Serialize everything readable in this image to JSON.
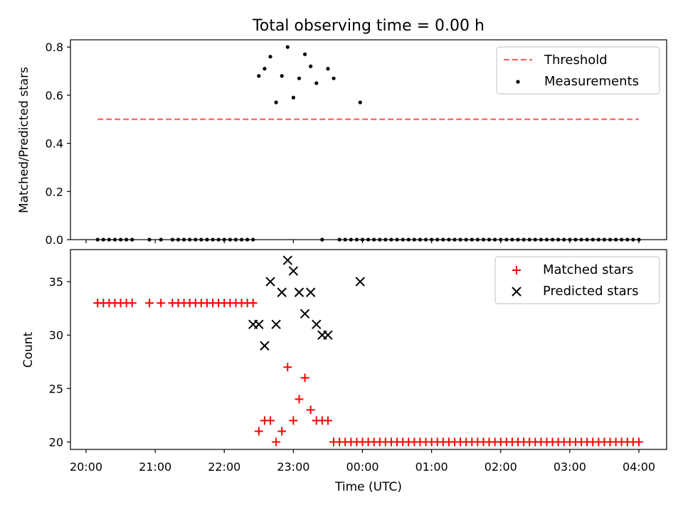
{
  "chart_data": [
    {
      "type": "scatter",
      "title": "Total observing time = 0.00 h",
      "xlabel": "",
      "ylabel": "Matched/Predicted stars",
      "ylim": [
        0,
        0.83
      ],
      "yticks": [
        0.0,
        0.2,
        0.4,
        0.6,
        0.8
      ],
      "yticklabels": [
        "0.0",
        "0.2",
        "0.4",
        "0.6",
        "0.8"
      ],
      "legend": {
        "placement": "top-right",
        "entries": [
          "Threshold",
          "Measurements"
        ]
      },
      "threshold": {
        "name": "Threshold",
        "value": 0.5,
        "x_start": "20:10",
        "x_end": "04:00",
        "color": "#ff6666",
        "style": "dashed"
      },
      "series": [
        {
          "name": "Measurements",
          "marker": "dot",
          "color": "#000000",
          "x": [
            "20:10",
            "20:15",
            "20:20",
            "20:25",
            "20:30",
            "20:35",
            "20:40",
            "20:55",
            "21:05",
            "21:15",
            "21:20",
            "21:25",
            "21:30",
            "21:35",
            "21:40",
            "21:45",
            "21:50",
            "21:55",
            "22:00",
            "22:05",
            "22:10",
            "22:15",
            "22:20",
            "22:25",
            "22:30",
            "22:35",
            "22:40",
            "22:45",
            "22:50",
            "22:55",
            "23:00",
            "23:05",
            "23:10",
            "23:15",
            "23:20",
            "23:25",
            "23:30",
            "23:35",
            "23:40",
            "23:45",
            "23:50",
            "23:55",
            "23:58",
            "00:00",
            "00:05",
            "00:10",
            "00:15",
            "00:20",
            "00:25",
            "00:30",
            "00:35",
            "00:40",
            "00:45",
            "00:50",
            "00:55",
            "01:00",
            "01:05",
            "01:10",
            "01:15",
            "01:20",
            "01:25",
            "01:30",
            "01:35",
            "01:40",
            "01:45",
            "01:50",
            "01:55",
            "02:00",
            "02:05",
            "02:10",
            "02:15",
            "02:20",
            "02:25",
            "02:30",
            "02:35",
            "02:40",
            "02:45",
            "02:50",
            "02:55",
            "03:00",
            "03:05",
            "03:10",
            "03:15",
            "03:20",
            "03:25",
            "03:30",
            "03:35",
            "03:40",
            "03:45",
            "03:50",
            "03:55",
            "04:00"
          ],
          "y": [
            0,
            0,
            0,
            0,
            0,
            0,
            0,
            0,
            0,
            0,
            0,
            0,
            0,
            0,
            0,
            0,
            0,
            0,
            0,
            0,
            0,
            0,
            0,
            0,
            0.68,
            0.71,
            0.76,
            0.57,
            0.68,
            0.8,
            0.59,
            0.67,
            0.77,
            0.72,
            0.65,
            0,
            0.71,
            0.67,
            0,
            0,
            0,
            0,
            0.57,
            0,
            0,
            0,
            0,
            0,
            0,
            0,
            0,
            0,
            0,
            0,
            0,
            0,
            0,
            0,
            0,
            0,
            0,
            0,
            0,
            0,
            0,
            0,
            0,
            0,
            0,
            0,
            0,
            0,
            0,
            0,
            0,
            0,
            0,
            0,
            0,
            0,
            0,
            0,
            0,
            0,
            0,
            0,
            0,
            0,
            0,
            0,
            0,
            0
          ]
        }
      ]
    },
    {
      "type": "scatter",
      "title": "",
      "xlabel": "Time (UTC)",
      "ylabel": "Count",
      "ylim": [
        19.3,
        38
      ],
      "yticks": [
        20,
        25,
        30,
        35
      ],
      "yticklabels": [
        "20",
        "25",
        "30",
        "35"
      ],
      "xticks": [
        "20:00",
        "21:00",
        "22:00",
        "23:00",
        "00:00",
        "01:00",
        "02:00",
        "03:00",
        "04:00"
      ],
      "xticklabels": [
        "20:00",
        "21:00",
        "22:00",
        "23:00",
        "00:00",
        "01:00",
        "02:00",
        "03:00",
        "04:00"
      ],
      "legend": {
        "placement": "top-right",
        "entries": [
          "Matched stars",
          "Predicted stars"
        ]
      },
      "series": [
        {
          "name": "Matched stars",
          "marker": "plus",
          "color": "#ff0000",
          "x": [
            "20:10",
            "20:15",
            "20:20",
            "20:25",
            "20:30",
            "20:35",
            "20:40",
            "20:55",
            "21:05",
            "21:15",
            "21:20",
            "21:25",
            "21:30",
            "21:35",
            "21:40",
            "21:45",
            "21:50",
            "21:55",
            "22:00",
            "22:05",
            "22:10",
            "22:15",
            "22:20",
            "22:25",
            "22:30",
            "22:35",
            "22:40",
            "22:45",
            "22:50",
            "22:55",
            "23:00",
            "23:05",
            "23:10",
            "23:15",
            "23:20",
            "23:25",
            "23:30",
            "23:35",
            "23:40",
            "23:45",
            "23:50",
            "23:55",
            "00:00",
            "00:05",
            "00:10",
            "00:15",
            "00:20",
            "00:25",
            "00:30",
            "00:35",
            "00:40",
            "00:45",
            "00:50",
            "00:55",
            "01:00",
            "01:05",
            "01:10",
            "01:15",
            "01:20",
            "01:25",
            "01:30",
            "01:35",
            "01:40",
            "01:45",
            "01:50",
            "01:55",
            "02:00",
            "02:05",
            "02:10",
            "02:15",
            "02:20",
            "02:25",
            "02:30",
            "02:35",
            "02:40",
            "02:45",
            "02:50",
            "02:55",
            "03:00",
            "03:05",
            "03:10",
            "03:15",
            "03:20",
            "03:25",
            "03:30",
            "03:35",
            "03:40",
            "03:45",
            "03:50",
            "03:55",
            "04:00"
          ],
          "y": [
            33,
            33,
            33,
            33,
            33,
            33,
            33,
            33,
            33,
            33,
            33,
            33,
            33,
            33,
            33,
            33,
            33,
            33,
            33,
            33,
            33,
            33,
            33,
            33,
            21,
            22,
            22,
            20,
            21,
            27,
            22,
            24,
            26,
            23,
            22,
            22,
            22,
            20,
            20,
            20,
            20,
            20,
            20,
            20,
            20,
            20,
            20,
            20,
            20,
            20,
            20,
            20,
            20,
            20,
            20,
            20,
            20,
            20,
            20,
            20,
            20,
            20,
            20,
            20,
            20,
            20,
            20,
            20,
            20,
            20,
            20,
            20,
            20,
            20,
            20,
            20,
            20,
            20,
            20,
            20,
            20,
            20,
            20,
            20,
            20,
            20,
            20,
            20,
            20,
            20,
            20
          ]
        },
        {
          "name": "Predicted stars",
          "marker": "x",
          "color": "#000000",
          "x": [
            "22:25",
            "22:30",
            "22:35",
            "22:40",
            "22:45",
            "22:50",
            "22:55",
            "23:00",
            "23:05",
            "23:10",
            "23:15",
            "23:20",
            "23:25",
            "23:30",
            "23:58"
          ],
          "y": [
            31,
            31,
            29,
            35,
            31,
            34,
            37,
            36,
            34,
            32,
            34,
            31,
            30,
            30,
            35
          ]
        }
      ]
    }
  ]
}
